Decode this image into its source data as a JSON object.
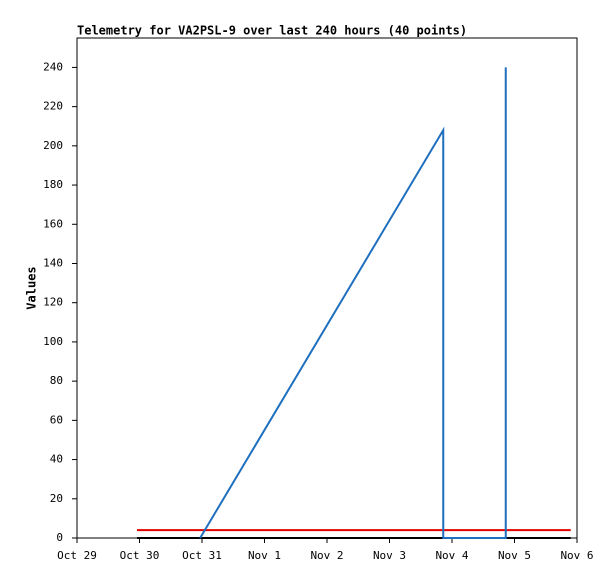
{
  "chart_data": {
    "type": "line",
    "title": "Telemetry for VA2PSL-9 over last 240 hours (40 points)",
    "y_label": "Values",
    "xlim": [
      0,
      8
    ],
    "xticks": [
      {
        "value": 0,
        "label": "Oct 29"
      },
      {
        "value": 1,
        "label": "Oct 30"
      },
      {
        "value": 2,
        "label": "Oct 31"
      },
      {
        "value": 3,
        "label": "Nov 1"
      },
      {
        "value": 4,
        "label": "Nov 2"
      },
      {
        "value": 5,
        "label": "Nov 3"
      },
      {
        "value": 6,
        "label": "Nov 4"
      },
      {
        "value": 7,
        "label": "Nov 5"
      },
      {
        "value": 8,
        "label": "Nov 6"
      }
    ],
    "ylim": [
      0,
      255
    ],
    "yticks": [
      0,
      20,
      40,
      60,
      80,
      100,
      120,
      140,
      160,
      180,
      200,
      220,
      240
    ],
    "grid": false,
    "series": [
      {
        "color": "#000000",
        "x": [
          0.96,
          7.9
        ],
        "values": [
          0,
          0
        ]
      },
      {
        "color": "#e00000",
        "x": [
          0.96,
          7.9
        ],
        "values": [
          4,
          4
        ]
      },
      {
        "color": "#1f6fbf",
        "x": [
          1.97,
          5.86,
          5.86,
          6.86,
          6.86
        ],
        "values": [
          0,
          208,
          0,
          0,
          240
        ]
      }
    ]
  }
}
